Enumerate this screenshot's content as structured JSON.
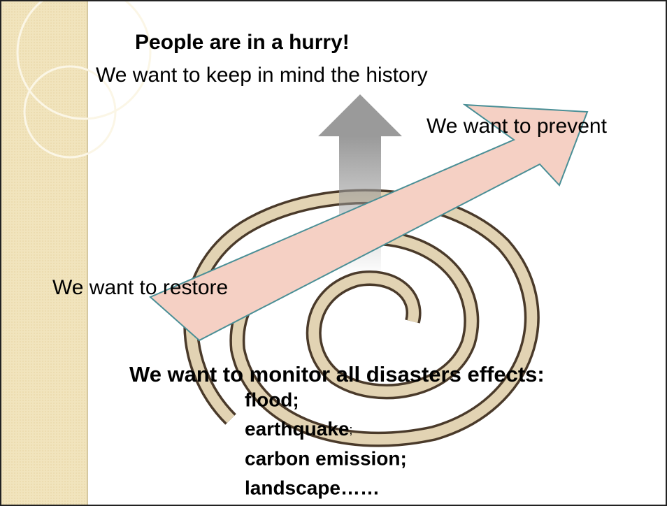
{
  "title": "People are in a hurry!",
  "lines": {
    "history": "We want to keep in mind the history",
    "prevent": "We want to prevent",
    "restore": "We want to restore",
    "monitor": "We want to monitor all disasters effects:"
  },
  "list": [
    {
      "text": "flood;"
    },
    {
      "text": "earthquake",
      "suffix": ";"
    },
    {
      "text": "carbon emission;"
    },
    {
      "text": "landscape……"
    }
  ]
}
